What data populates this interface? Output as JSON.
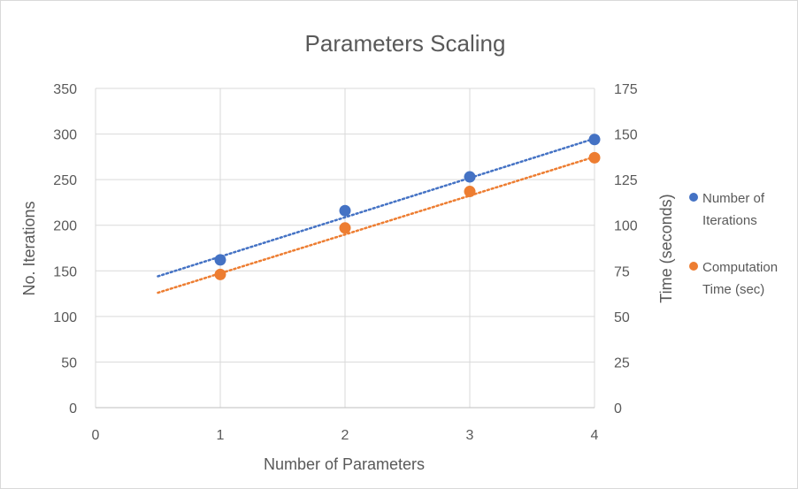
{
  "chart_data": {
    "type": "scatter",
    "title": "Parameters Scaling",
    "xlabel": "Number of Parameters",
    "ylabel": "No. Iterations",
    "y2label": "Time (seconds)",
    "xlim": [
      0,
      4
    ],
    "ylim": [
      0,
      350
    ],
    "y2lim": [
      0,
      175
    ],
    "xticks": [
      "0",
      "1",
      "2",
      "3",
      "4"
    ],
    "yticks": [
      "0",
      "50",
      "100",
      "150",
      "200",
      "250",
      "300",
      "350"
    ],
    "y2ticks": [
      "0",
      "25",
      "50",
      "75",
      "100",
      "125",
      "150",
      "175"
    ],
    "grid": true,
    "legend_position": "right",
    "series": [
      {
        "name_lines": [
          "Number of",
          "Iterations"
        ],
        "axis": "left",
        "color": "#4472c4",
        "x": [
          1,
          2,
          3,
          4
        ],
        "y": [
          162,
          216,
          253,
          294
        ],
        "trendline": {
          "type": "linear",
          "x_start": 0.5,
          "x_end": 4,
          "y_start": 144,
          "y_end": 295
        }
      },
      {
        "name_lines": [
          "Computation",
          "Time (sec)"
        ],
        "axis": "right",
        "color": "#ed7d31",
        "x": [
          1,
          2,
          3,
          4
        ],
        "y": [
          73,
          98.5,
          118.5,
          137
        ],
        "trendline": {
          "type": "linear",
          "x_start": 0.5,
          "x_end": 4,
          "y_start": 63,
          "y_end": 137.5
        }
      }
    ]
  }
}
